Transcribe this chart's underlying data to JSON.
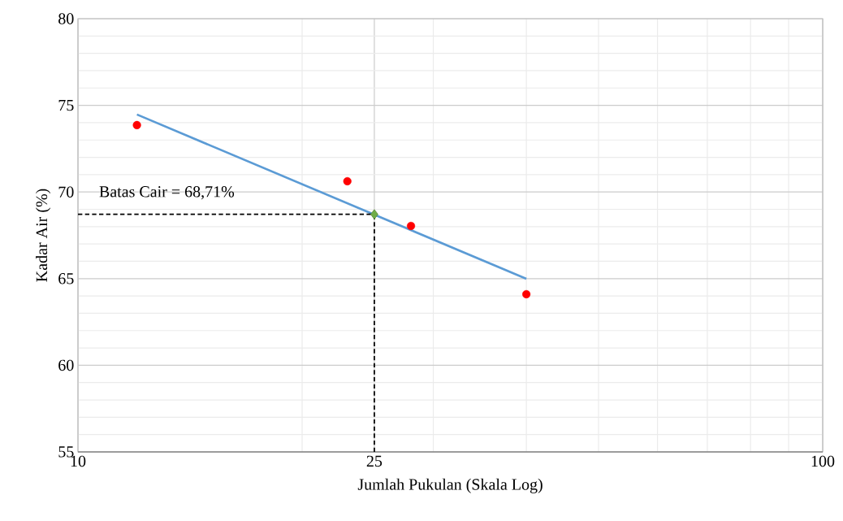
{
  "chart_data": {
    "type": "scatter",
    "xlabel": "Jumlah Pukulan (Skala Log)",
    "ylabel": "Kadar Air (%)",
    "log": "x",
    "grid": true,
    "xlim": [
      10,
      100
    ],
    "xticks": [
      10,
      25,
      100
    ],
    "ylim": [
      55,
      80
    ],
    "yticks": [
      55,
      60,
      65,
      70,
      75,
      80
    ],
    "series": [
      {
        "color": "#ff0000",
        "marker": "circle",
        "x": [
          12,
          23,
          28,
          40
        ],
        "values": [
          73.86,
          70.62,
          68.04,
          64.1
        ]
      },
      {
        "type": "line",
        "color": "#5b9bd5",
        "marker": "none",
        "line_style": "solid",
        "x": [
          12,
          40
        ],
        "values": [
          74.47,
          64.99
        ]
      },
      {
        "type": "line",
        "color": "#000000",
        "marker": "none",
        "line_style": "dashed",
        "x": [
          10,
          25
        ],
        "values": [
          68.71,
          68.71
        ]
      },
      {
        "type": "line",
        "color": "#000000",
        "marker": "none",
        "line_style": "dashed",
        "x": [
          25,
          25
        ],
        "values": [
          55,
          68.71
        ]
      },
      {
        "color": "#70ad47",
        "marker": "diamond",
        "x": [
          25
        ],
        "values": [
          68.71
        ]
      }
    ],
    "annotations": [
      "Batas Cair = 68,71%"
    ]
  }
}
